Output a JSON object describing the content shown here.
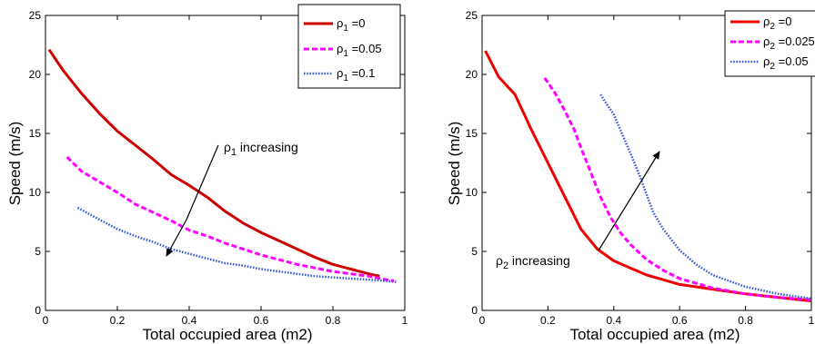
{
  "chart_data": [
    {
      "type": "line",
      "title": "",
      "xlabel": "Total occupied area (m2)",
      "ylabel": "Speed (m/s)",
      "xlim": [
        0,
        1
      ],
      "ylim": [
        0,
        25
      ],
      "xticks": [
        "0",
        "0.2",
        "0.4",
        "0.6",
        "0.8",
        "1"
      ],
      "yticks": [
        "0",
        "5",
        "10",
        "15",
        "20",
        "25"
      ],
      "grid": false,
      "legend": "top-right",
      "series": [
        {
          "name": "ρ1 =0",
          "sym": "ρ",
          "sub": "1",
          "val": " =0",
          "style": "solid",
          "color": "#cc0000",
          "x": [
            0.01,
            0.05,
            0.1,
            0.15,
            0.2,
            0.25,
            0.3,
            0.35,
            0.4,
            0.45,
            0.5,
            0.55,
            0.6,
            0.65,
            0.7,
            0.75,
            0.8,
            0.85,
            0.9,
            0.93
          ],
          "y": [
            22.1,
            20.3,
            18.4,
            16.7,
            15.2,
            14.0,
            12.8,
            11.5,
            10.6,
            9.6,
            8.4,
            7.4,
            6.6,
            5.9,
            5.2,
            4.5,
            3.9,
            3.5,
            3.1,
            2.9
          ]
        },
        {
          "name": "ρ1 =0.05",
          "sym": "ρ",
          "sub": "1",
          "val": " =0.05",
          "style": "dashed",
          "color": "#ff00ff",
          "x": [
            0.06,
            0.1,
            0.15,
            0.2,
            0.25,
            0.3,
            0.35,
            0.4,
            0.45,
            0.5,
            0.55,
            0.6,
            0.65,
            0.7,
            0.75,
            0.8,
            0.85,
            0.9,
            0.95,
            0.97
          ],
          "y": [
            13.0,
            11.8,
            10.9,
            10.0,
            9.0,
            8.3,
            7.6,
            6.8,
            6.3,
            5.7,
            5.2,
            4.7,
            4.3,
            3.9,
            3.6,
            3.3,
            3.1,
            2.9,
            2.6,
            2.5
          ]
        },
        {
          "name": "ρ1 =0.1",
          "sym": "ρ",
          "sub": "1",
          "val": " =0.1",
          "style": "dotted",
          "color": "#3b5bdb",
          "x": [
            0.09,
            0.15,
            0.2,
            0.25,
            0.3,
            0.35,
            0.4,
            0.45,
            0.5,
            0.55,
            0.6,
            0.65,
            0.7,
            0.75,
            0.8,
            0.85,
            0.9,
            0.95,
            0.98
          ],
          "y": [
            8.7,
            7.7,
            6.9,
            6.3,
            5.8,
            5.2,
            4.8,
            4.4,
            4.0,
            3.8,
            3.5,
            3.3,
            3.1,
            2.9,
            2.8,
            2.7,
            2.6,
            2.5,
            2.4
          ]
        }
      ],
      "annotation": {
        "sym": "ρ",
        "sub": "1",
        "text": " increasing"
      }
    },
    {
      "type": "line",
      "title": "",
      "xlabel": "Total occupied area (m2)",
      "ylabel": "Speed (m/s)",
      "xlim": [
        0,
        1
      ],
      "ylim": [
        0,
        25
      ],
      "xticks": [
        "0",
        "0.2",
        "0.4",
        "0.6",
        "0.8",
        "1"
      ],
      "yticks": [
        "0",
        "5",
        "10",
        "15",
        "20",
        "25"
      ],
      "grid": false,
      "legend": "top-right",
      "series": [
        {
          "name": "ρ2 =0",
          "sym": "ρ",
          "sub": "2",
          "val": " =0",
          "style": "solid",
          "color": "#ee0000",
          "x": [
            0.01,
            0.05,
            0.1,
            0.15,
            0.2,
            0.25,
            0.3,
            0.35,
            0.4,
            0.45,
            0.5,
            0.55,
            0.6,
            0.7,
            0.8,
            0.9,
            1.0
          ],
          "y": [
            22.0,
            19.8,
            18.3,
            15.3,
            12.5,
            9.7,
            6.9,
            5.2,
            4.2,
            3.6,
            3.0,
            2.6,
            2.2,
            1.8,
            1.4,
            1.1,
            0.8
          ]
        },
        {
          "name": "ρ2 =0.025",
          "sym": "ρ",
          "sub": "2",
          "val": " =0.025",
          "style": "dashed",
          "color": "#ff00ff",
          "x": [
            0.19,
            0.22,
            0.25,
            0.28,
            0.3,
            0.33,
            0.36,
            0.39,
            0.42,
            0.45,
            0.5,
            0.55,
            0.6,
            0.7,
            0.8,
            0.9,
            1.0
          ],
          "y": [
            19.7,
            18.5,
            17.0,
            15.3,
            13.8,
            11.7,
            9.6,
            7.9,
            6.6,
            5.6,
            4.3,
            3.4,
            2.7,
            1.9,
            1.4,
            1.1,
            0.9
          ]
        },
        {
          "name": "ρ2 =0.05",
          "sym": "ρ",
          "sub": "2",
          "val": " =0.05",
          "style": "dotted",
          "color": "#3b5bdb",
          "x": [
            0.36,
            0.38,
            0.4,
            0.42,
            0.44,
            0.46,
            0.48,
            0.5,
            0.52,
            0.55,
            0.6,
            0.65,
            0.7,
            0.8,
            0.9,
            1.0
          ],
          "y": [
            18.3,
            17.4,
            16.6,
            15.3,
            14.0,
            12.7,
            11.3,
            9.8,
            8.3,
            6.9,
            5.1,
            3.9,
            3.0,
            2.0,
            1.4,
            1.0
          ]
        }
      ],
      "annotation": {
        "sym": "ρ",
        "sub": "2",
        "text": " increasing"
      }
    }
  ]
}
